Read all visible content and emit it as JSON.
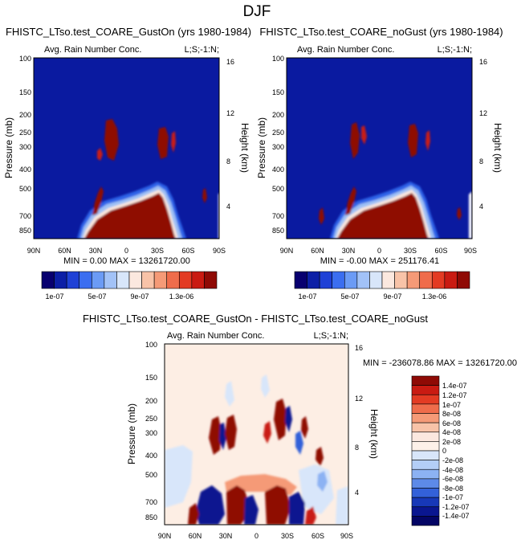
{
  "chart_data": {
    "title": "DJF",
    "panels": [
      {
        "type": "heatmap",
        "title": "FHISTC_LTso.test_COARE_GustOn (yrs 1980-1984)",
        "left_label": "Avg. Rain Number Conc.",
        "right_label": "L;S;-1:N;",
        "xlabel": "",
        "ylabel": "Pressure (mb)",
        "ylabel_right": "Height (km)",
        "x_ticks": [
          "90N",
          "60N",
          "30N",
          "0",
          "30S",
          "60S",
          "90S"
        ],
        "y_ticks": [
          "100",
          "150",
          "200",
          "250",
          "300",
          "400",
          "500",
          "700",
          "850"
        ],
        "height_ticks": [
          "16",
          "12",
          "8",
          "4"
        ],
        "stats": "MIN =  0.00  MAX = 13261720.00",
        "colorbar": {
          "labels": [
            "1e-07",
            "5e-07",
            "9e-07",
            "1.3e-06"
          ],
          "colors": [
            "#08006f",
            "#0c1fa6",
            "#1f41d6",
            "#3b6ef0",
            "#6b9bf5",
            "#a2c2f7",
            "#d8e6fa",
            "#fbe8df",
            "#f8c3a8",
            "#f59a77",
            "#ef6c4b",
            "#e33b23",
            "#c91b12",
            "#8f0a05"
          ]
        }
      },
      {
        "type": "heatmap",
        "title": "FHISTC_LTso.test_COARE_noGust (yrs 1980-1984)",
        "left_label": "Avg. Rain Number Conc.",
        "right_label": "L;S;-1:N;",
        "xlabel": "",
        "ylabel": "Pressure (mb)",
        "ylabel_right": "Height (km)",
        "x_ticks": [
          "90N",
          "60N",
          "30N",
          "0",
          "30S",
          "60S",
          "90S"
        ],
        "y_ticks": [
          "100",
          "150",
          "200",
          "250",
          "300",
          "400",
          "500",
          "700",
          "850"
        ],
        "height_ticks": [
          "16",
          "12",
          "8",
          "4"
        ],
        "stats": "MIN = -0.00  MAX = 251176.41",
        "colorbar": {
          "labels": [
            "1e-07",
            "5e-07",
            "9e-07",
            "1.3e-06"
          ],
          "colors": [
            "#08006f",
            "#0c1fa6",
            "#1f41d6",
            "#3b6ef0",
            "#6b9bf5",
            "#a2c2f7",
            "#d8e6fa",
            "#fbe8df",
            "#f8c3a8",
            "#f59a77",
            "#ef6c4b",
            "#e33b23",
            "#c91b12",
            "#8f0a05"
          ]
        }
      },
      {
        "type": "heatmap",
        "title": "FHISTC_LTso.test_COARE_GustOn - FHISTC_LTso.test_COARE_noGust",
        "left_label": "Avg. Rain Number Conc.",
        "right_label": "L;S;-1:N;",
        "xlabel": "",
        "ylabel": "Pressure (mb)",
        "ylabel_right": "Height (km)",
        "x_ticks": [
          "90N",
          "60N",
          "30N",
          "0",
          "30S",
          "60S",
          "90S"
        ],
        "y_ticks": [
          "100",
          "150",
          "200",
          "250",
          "300",
          "400",
          "500",
          "700",
          "850"
        ],
        "height_ticks": [
          "16",
          "12",
          "8",
          "4"
        ],
        "stats": "MIN = -236078.86  MAX = 13261720.00",
        "colorbar": {
          "labels": [
            "1.4e-07",
            "1.2e-07",
            "1e-07",
            "8e-08",
            "6e-08",
            "4e-08",
            "2e-08",
            "0",
            "-2e-08",
            "-4e-08",
            "-6e-08",
            "-8e-08",
            "-1e-07",
            "-1.2e-07",
            "-1.4e-07"
          ],
          "colors": [
            "#8f0a05",
            "#c91b12",
            "#e33b23",
            "#ef6c4b",
            "#f59a77",
            "#f8c3a8",
            "#fbe8df",
            "#fdf1e9",
            "#d8e6fa",
            "#b3cef7",
            "#8cb2f3",
            "#5d8ae8",
            "#3361d9",
            "#1738b8",
            "#0a1690",
            "#040565"
          ]
        }
      }
    ]
  }
}
